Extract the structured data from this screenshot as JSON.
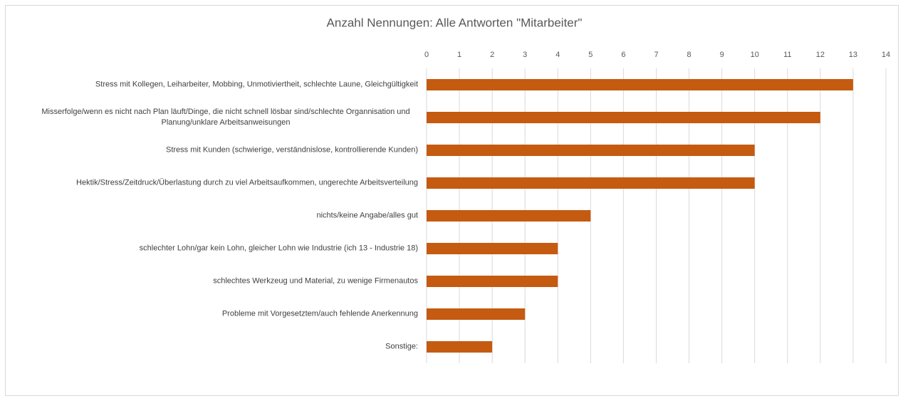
{
  "chart_data": {
    "type": "bar",
    "orientation": "horizontal",
    "title": "Anzahl Nennungen: Alle Antworten \"Mitarbeiter\"",
    "categories": [
      "Stress mit Kollegen, Leiharbeiter, Mobbing, Unmotiviertheit, schlechte Laune, Gleichgültigkeit",
      "Misserfolge/wenn es nicht nach Plan läuft/Dinge, die nicht schnell lösbar sind/schlechte Organnisation und Planung/unklare Arbeitsanweisungen",
      "Stress mit Kunden (schwierige, verständnislose, kontrollierende Kunden)",
      "Hektik/Stress/Zeitdruck/Überlastung durch zu viel Arbeitsaufkommen, ungerechte Arbeitsverteilung",
      "nichts/keine Angabe/alles gut",
      "schlechter Lohn/gar kein Lohn, gleicher Lohn wie Industrie (ich 13 - Industrie 18)",
      "schlechtes Werkzeug und Material, zu wenige Firmenautos",
      "Probleme mit Vorgesetztem/auch fehlende Anerkennung",
      "Sonstige:"
    ],
    "values": [
      13,
      12,
      10,
      10,
      5,
      4,
      4,
      3,
      2
    ],
    "color": "#c55a11",
    "xlim": [
      0,
      14
    ],
    "xticks": [
      0,
      1,
      2,
      3,
      4,
      5,
      6,
      7,
      8,
      9,
      10,
      11,
      12,
      13,
      14
    ],
    "grid": true
  }
}
